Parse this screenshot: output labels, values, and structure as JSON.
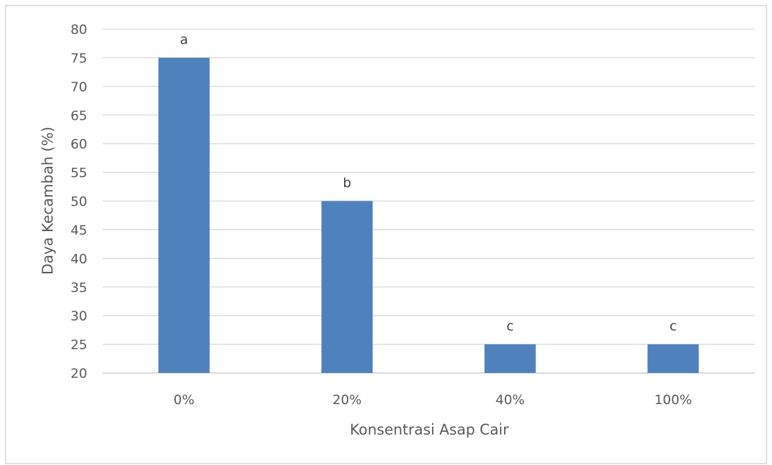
{
  "chart_data": {
    "type": "bar",
    "title": "",
    "xlabel": "Konsentrasi Asap Cair",
    "ylabel": "Daya Kecambah (%)",
    "categories": [
      "0%",
      "20%",
      "40%",
      "100%"
    ],
    "values": [
      75,
      50,
      25,
      25
    ],
    "data_labels": [
      "a",
      "b",
      "c",
      "c"
    ],
    "ylim": [
      20,
      80
    ],
    "ytick_step": 5,
    "grid": true,
    "legend": "none",
    "colors": {
      "bar": "#4f81bd",
      "grid": "#d9d9d9",
      "text": "#595959",
      "frame": "#bfbfbf"
    }
  }
}
